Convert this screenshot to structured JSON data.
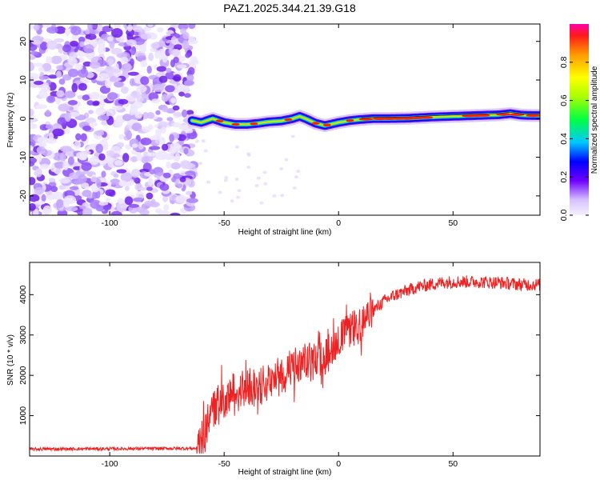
{
  "title": "PAZ1.2025.344.21.39.G18",
  "chart_data": [
    {
      "type": "heatmap",
      "name": "spectrogram",
      "xlabel": "Height of straight line (km)",
      "ylabel": "Frequency (Hz)",
      "xlim": [
        -135,
        88
      ],
      "ylim": [
        -25,
        24.5
      ],
      "xticks": [
        -100,
        -50,
        0,
        50
      ],
      "xtick_labels": [
        "-100",
        "-50",
        "0",
        "50"
      ],
      "yticks": [
        -20,
        -10,
        0,
        10,
        20
      ],
      "ytick_labels": [
        "-20",
        "-10",
        "0",
        "10",
        "20"
      ],
      "noise_region_x": [
        -135,
        -63
      ],
      "signal_trace": {
        "x": [
          -64,
          -60,
          -55,
          -50,
          -45,
          -40,
          -35,
          -30,
          -25,
          -20,
          -17,
          -14,
          -10,
          -6,
          -3,
          0,
          5,
          10,
          15,
          20,
          30,
          40,
          50,
          60,
          65,
          70,
          75,
          80,
          85,
          88
        ],
        "freq": [
          -0.5,
          -1.0,
          0.0,
          -1.0,
          -1.5,
          -1.5,
          -1.2,
          -0.8,
          -0.6,
          0.0,
          0.6,
          -0.1,
          -1.2,
          -1.8,
          -1.4,
          -1.0,
          -0.5,
          -0.2,
          0.0,
          0.0,
          0.1,
          0.4,
          0.6,
          0.8,
          0.9,
          1.0,
          1.3,
          0.9,
          0.8,
          0.8
        ]
      },
      "colorbar": {
        "label": "Normalized spectral amplitude",
        "range": [
          0,
          1
        ],
        "ticks": [
          0.0,
          0.2,
          0.4,
          0.6,
          0.8
        ],
        "tick_labels": [
          "0.0",
          "0.2",
          "0.4",
          "0.6",
          "0.8"
        ]
      }
    },
    {
      "type": "line",
      "name": "snr",
      "xlabel": "Height of straight line (km)",
      "ylabel": "SNR (10 * v/v)",
      "xlim": [
        -135,
        88
      ],
      "ylim": [
        0,
        4800
      ],
      "xticks": [
        -100,
        -50,
        0,
        50
      ],
      "xtick_labels": [
        "-100",
        "-50",
        "0",
        "50"
      ],
      "yticks": [
        1000,
        2000,
        3000,
        4000
      ],
      "ytick_labels": [
        "1000",
        "2000",
        "3000",
        "4000"
      ],
      "series": [
        {
          "name": "SNR",
          "color": "#ee2222",
          "trend_x": [
            -135,
            -62,
            -60,
            -57,
            -52,
            -47,
            -40,
            -30,
            -20,
            -10,
            -5,
            0,
            5,
            10,
            15,
            20,
            25,
            30,
            35,
            40,
            45,
            50,
            60,
            70,
            80,
            88
          ],
          "trend_y": [
            170,
            190,
            350,
            1000,
            1300,
            1500,
            1650,
            1900,
            2150,
            2400,
            2600,
            2900,
            3100,
            3300,
            3600,
            3850,
            4000,
            4100,
            4200,
            4250,
            4300,
            4320,
            4320,
            4300,
            4250,
            4250
          ]
        }
      ]
    }
  ],
  "colors": {
    "noise": "#7a2ee0",
    "signal_core": "#ff2200",
    "snr_line": "#ee2222"
  }
}
